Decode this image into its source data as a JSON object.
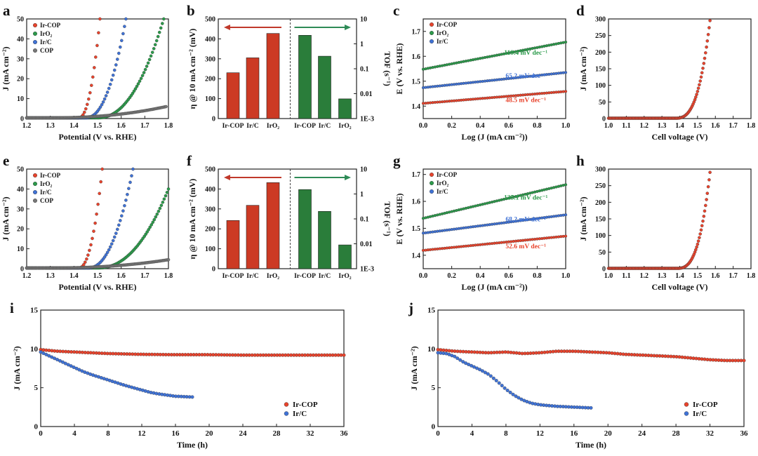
{
  "figure": {
    "colors": {
      "red": "#e8432c",
      "blue": "#3f72d6",
      "green": "#2b9a4a",
      "gray": "#777777",
      "bar_red": "#cc3a24",
      "bar_green": "#2a7d3a",
      "arrow_red": "#c0392b",
      "arrow_green": "#2e8b57"
    }
  },
  "chart_data": [
    {
      "id": "a",
      "type": "line",
      "panel_label": "a",
      "xlabel": "Potential (V vs. RHE)",
      "ylabel": "J (mA cm⁻²)",
      "xlim": [
        1.2,
        1.8
      ],
      "ylim": [
        0,
        50
      ],
      "xticks": [
        "1.2",
        "1.3",
        "1.4",
        "1.5",
        "1.6",
        "1.7",
        "1.8"
      ],
      "yticks": [
        "0",
        "10",
        "20",
        "30",
        "40",
        "50"
      ],
      "legend": [
        "Ir-COP",
        "IrO₂",
        "Ir/C",
        "COP"
      ],
      "series": [
        {
          "name": "Ir-COP",
          "color": "red",
          "onset": 1.42,
          "end": 1.51,
          "end_value": 50
        },
        {
          "name": "IrO2",
          "color": "green",
          "onset": 1.5,
          "end": 1.78,
          "end_value": 50
        },
        {
          "name": "Ir/C",
          "color": "blue",
          "onset": 1.45,
          "end": 1.62,
          "end_value": 50
        },
        {
          "name": "COP",
          "color": "gray",
          "onset": 1.3,
          "end": 1.79,
          "end_value": 6
        }
      ]
    },
    {
      "id": "b",
      "type": "bar",
      "panel_label": "b",
      "ylabel_left": "η @ 10 mA cm⁻² (mV)",
      "ylabel_right": "TOF (s⁻¹)",
      "left_ylim": [
        0,
        500
      ],
      "left_yticks": [
        "0",
        "100",
        "200",
        "300",
        "400",
        "500"
      ],
      "right_yticks": [
        "10",
        "1",
        "0.1",
        "0.01",
        "1E-3"
      ],
      "categories_left": [
        "Ir-COP",
        "Ir/C",
        "IrO₂"
      ],
      "values_left": [
        230,
        305,
        427
      ],
      "categories_right": [
        "Ir-COP",
        "Ir/C",
        "IrO₂"
      ],
      "values_right": [
        2.2,
        0.32,
        0.0062
      ]
    },
    {
      "id": "c",
      "type": "scatter",
      "panel_label": "c",
      "xlabel": "Log (J (mA cm⁻²))",
      "ylabel": "E (V vs. RHE)",
      "xlim": [
        0,
        1.0
      ],
      "ylim": [
        1.35,
        1.75
      ],
      "xticks": [
        "0.0",
        "0.2",
        "0.4",
        "0.6",
        "0.8",
        "1.0"
      ],
      "yticks": [
        "1.4",
        "1.5",
        "1.6",
        "1.7"
      ],
      "legend": [
        "Ir-COP",
        "IrO₂",
        "Ir/C"
      ],
      "series": [
        {
          "name": "IrO2",
          "color": "green",
          "start": 1.548,
          "end": 1.657,
          "label": "119.4 mV dec⁻¹"
        },
        {
          "name": "Ir/C",
          "color": "blue",
          "start": 1.474,
          "end": 1.535,
          "label": "65.2 mV dec⁻¹"
        },
        {
          "name": "Ir-COP",
          "color": "red",
          "start": 1.411,
          "end": 1.459,
          "label": "48.5 mV dec⁻¹"
        }
      ]
    },
    {
      "id": "d",
      "type": "line",
      "panel_label": "d",
      "xlabel": "Cell voltage (V)",
      "ylabel": "J (mA cm⁻²)",
      "xlim": [
        1.0,
        1.8
      ],
      "ylim": [
        0,
        300
      ],
      "xticks": [
        "1.0",
        "1.1",
        "1.2",
        "1.3",
        "1.4",
        "1.5",
        "1.6",
        "1.7",
        "1.8"
      ],
      "yticks": [
        "0",
        "50",
        "100",
        "150",
        "200",
        "250",
        "300"
      ],
      "series": [
        {
          "name": "Ir-COP",
          "color": "red",
          "onset": 1.37,
          "end": 1.57,
          "end_value": 295
        }
      ]
    },
    {
      "id": "e",
      "type": "line",
      "panel_label": "e",
      "xlabel": "Potential (V vs. RHE)",
      "ylabel": "J (mA cm⁻²)",
      "xlim": [
        1.2,
        1.8
      ],
      "ylim": [
        0,
        50
      ],
      "xticks": [
        "1.2",
        "1.3",
        "1.4",
        "1.5",
        "1.6",
        "1.7",
        "1.8"
      ],
      "yticks": [
        "0",
        "10",
        "20",
        "30",
        "40",
        "50"
      ],
      "legend": [
        "Ir-COP",
        "IrO₂",
        "Ir/C",
        "COP"
      ],
      "series": [
        {
          "name": "Ir-COP",
          "color": "red",
          "onset": 1.42,
          "end": 1.52,
          "end_value": 50
        },
        {
          "name": "IrO2",
          "color": "green",
          "onset": 1.5,
          "end": 1.8,
          "end_value": 40
        },
        {
          "name": "Ir/C",
          "color": "blue",
          "onset": 1.46,
          "end": 1.65,
          "end_value": 50
        },
        {
          "name": "COP",
          "color": "gray",
          "onset": 1.3,
          "end": 1.8,
          "end_value": 4.5
        }
      ]
    },
    {
      "id": "f",
      "type": "bar",
      "panel_label": "f",
      "ylabel_left": "η @ 10 mA cm⁻² (mV)",
      "ylabel_right": "TOF (s⁻¹)",
      "left_ylim": [
        0,
        500
      ],
      "left_yticks": [
        "0",
        "100",
        "200",
        "300",
        "400",
        "500"
      ],
      "right_yticks": [
        "10",
        "1",
        "0.1",
        "0.01",
        "1E-3"
      ],
      "categories_left": [
        "Ir-COP",
        "Ir/C",
        "IrO₂"
      ],
      "values_left": [
        242,
        318,
        432
      ],
      "categories_right": [
        "Ir-COP",
        "Ir/C",
        "IrO₂"
      ],
      "values_right": [
        1.5,
        0.2,
        0.009
      ]
    },
    {
      "id": "g",
      "type": "scatter",
      "panel_label": "g",
      "xlabel": "Log (J (mA cm⁻²))",
      "ylabel": "E (V vs. RHE)",
      "xlim": [
        0,
        1.0
      ],
      "ylim": [
        1.35,
        1.72
      ],
      "xticks": [
        "0.0",
        "0.2",
        "0.4",
        "0.6",
        "0.8",
        "1.0"
      ],
      "yticks": [
        "1.4",
        "1.5",
        "1.6",
        "1.7"
      ],
      "legend": [
        "Ir-COP",
        "IrO₂",
        "Ir/C"
      ],
      "series": [
        {
          "name": "IrO2",
          "color": "green",
          "start": 1.537,
          "end": 1.662,
          "label": "125.1 mV dec⁻¹"
        },
        {
          "name": "Ir/C",
          "color": "blue",
          "start": 1.482,
          "end": 1.55,
          "label": "68.2 mV dec⁻¹"
        },
        {
          "name": "Ir-COP",
          "color": "red",
          "start": 1.418,
          "end": 1.471,
          "label": "52.6 mV dec⁻¹"
        }
      ]
    },
    {
      "id": "h",
      "type": "line",
      "panel_label": "h",
      "xlabel": "Cell voltage (V)",
      "ylabel": "J (mA cm⁻²)",
      "xlim": [
        1.0,
        1.8
      ],
      "ylim": [
        0,
        300
      ],
      "xticks": [
        "1.0",
        "1.1",
        "1.2",
        "1.3",
        "1.4",
        "1.5",
        "1.6",
        "1.7",
        "1.8"
      ],
      "yticks": [
        "0",
        "50",
        "100",
        "150",
        "200",
        "250",
        "300"
      ],
      "series": [
        {
          "name": "Ir-COP",
          "color": "red",
          "onset": 1.38,
          "end": 1.57,
          "end_value": 290
        }
      ]
    },
    {
      "id": "i",
      "type": "line",
      "panel_label": "i",
      "xlabel": "Time  (h)",
      "ylabel": "J (mA cm⁻²)",
      "xlim": [
        0,
        36
      ],
      "ylim": [
        0,
        15
      ],
      "xticks": [
        "0",
        "4",
        "8",
        "12",
        "16",
        "20",
        "24",
        "28",
        "32",
        "36"
      ],
      "yticks": [
        "0",
        "5",
        "10",
        "15"
      ],
      "legend": [
        "Ir-COP",
        "Ir/C"
      ],
      "series": [
        {
          "name": "Ir-COP",
          "color": "red",
          "x": [
            0,
            2,
            4,
            8,
            12,
            16,
            20,
            24,
            28,
            32,
            36
          ],
          "y": [
            9.9,
            9.7,
            9.6,
            9.4,
            9.3,
            9.25,
            9.25,
            9.2,
            9.2,
            9.2,
            9.2
          ]
        },
        {
          "name": "Ir/C",
          "color": "blue",
          "x": [
            0,
            1,
            2,
            3,
            4,
            5,
            6,
            8,
            10,
            12,
            13,
            14,
            16,
            18
          ],
          "y": [
            9.6,
            9.1,
            8.6,
            8.1,
            7.6,
            7.1,
            6.7,
            6.0,
            5.3,
            4.7,
            4.4,
            4.2,
            3.9,
            3.8
          ]
        }
      ]
    },
    {
      "id": "j",
      "type": "line",
      "panel_label": "j",
      "xlabel": "Time  (h)",
      "ylabel": "J (mA cm⁻²)",
      "xlim": [
        0,
        36
      ],
      "ylim": [
        0,
        15
      ],
      "xticks": [
        "0",
        "4",
        "8",
        "12",
        "16",
        "20",
        "24",
        "28",
        "32",
        "36"
      ],
      "yticks": [
        "0",
        "5",
        "10",
        "15"
      ],
      "legend": [
        "Ir-COP",
        "Ir/C"
      ],
      "series": [
        {
          "name": "Ir-COP",
          "color": "red",
          "x": [
            0,
            2,
            4,
            6,
            8,
            10,
            12,
            14,
            16,
            18,
            20,
            22,
            24,
            26,
            28,
            30,
            32,
            34,
            36
          ],
          "y": [
            9.9,
            9.7,
            9.6,
            9.5,
            9.6,
            9.4,
            9.5,
            9.7,
            9.7,
            9.6,
            9.5,
            9.3,
            9.2,
            9.1,
            9.0,
            8.8,
            8.6,
            8.5,
            8.5
          ]
        },
        {
          "name": "Ir/C",
          "color": "blue",
          "x": [
            0,
            1,
            2,
            3,
            4,
            5,
            6,
            7,
            8,
            9,
            10,
            11,
            12,
            14,
            16,
            18
          ],
          "y": [
            9.5,
            9.4,
            9.0,
            8.3,
            7.8,
            7.3,
            6.7,
            5.8,
            4.8,
            4.0,
            3.4,
            3.0,
            2.8,
            2.6,
            2.5,
            2.4
          ]
        }
      ]
    }
  ]
}
